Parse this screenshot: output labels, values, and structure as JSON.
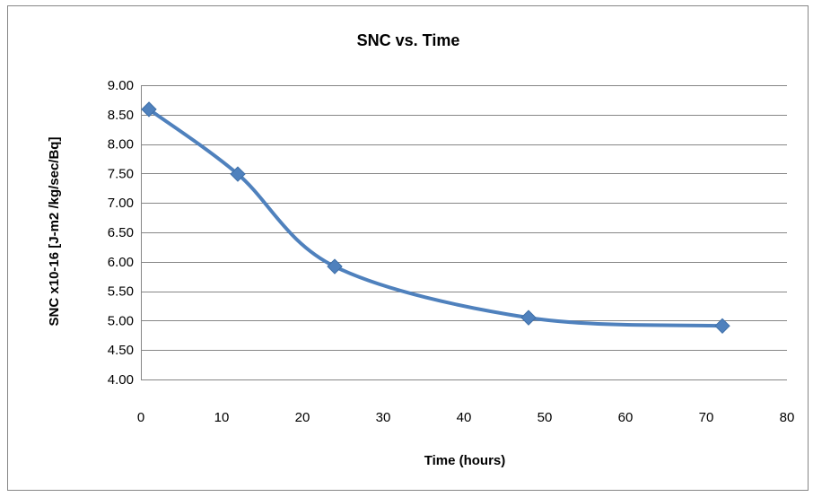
{
  "chart_data": {
    "type": "line",
    "title": "SNC vs. Time",
    "xlabel": "Time (hours)",
    "ylabel": "SNC  x10-16 [J-m2 /kg/sec/Bq]",
    "xlim": [
      0,
      80
    ],
    "ylim": [
      4.0,
      9.0
    ],
    "x_ticks": [
      "0",
      "10",
      "20",
      "30",
      "40",
      "50",
      "60",
      "70",
      "80"
    ],
    "y_ticks": [
      "4.00",
      "4.50",
      "5.00",
      "5.50",
      "6.00",
      "6.50",
      "7.00",
      "7.50",
      "8.00",
      "8.50",
      "9.00"
    ],
    "grid": "horizontal",
    "legend": "none",
    "smooth": true,
    "series": [
      {
        "color": "#4F81BD",
        "marker": "diamond",
        "x": [
          1,
          12,
          24,
          48,
          72
        ],
        "y": [
          8.59,
          7.49,
          5.92,
          5.05,
          4.91
        ]
      }
    ]
  }
}
